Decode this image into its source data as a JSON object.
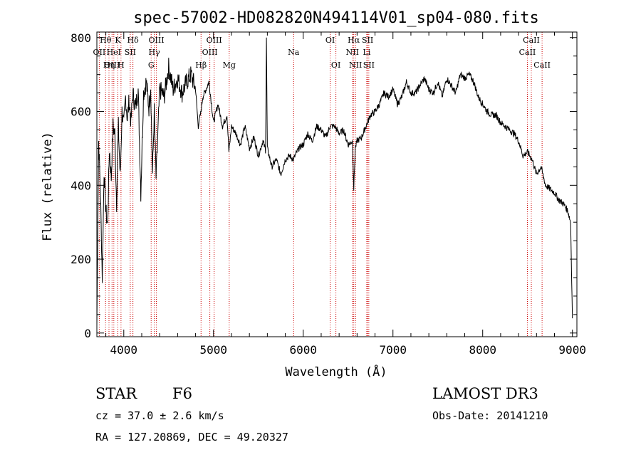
{
  "chart_data": {
    "type": "line",
    "title": "spec-57002-HD082820N494114V01_sp04-080.fits",
    "xlabel": "Wavelength (Å)",
    "ylabel": "Flux (relative)",
    "xlim": [
      3700,
      9050
    ],
    "ylim": [
      -10,
      815
    ],
    "xticks": [
      4000,
      5000,
      6000,
      7000,
      8000,
      9000
    ],
    "yticks": [
      0,
      200,
      400,
      600,
      800
    ],
    "series": [
      {
        "name": "flux",
        "x": [
          3700,
          3720,
          3740,
          3760,
          3780,
          3800,
          3820,
          3840,
          3860,
          3880,
          3900,
          3920,
          3940,
          3960,
          3980,
          4000,
          4020,
          4040,
          4060,
          4080,
          4100,
          4130,
          4160,
          4190,
          4220,
          4250,
          4280,
          4300,
          4320,
          4340,
          4360,
          4400,
          4450,
          4500,
          4550,
          4600,
          4650,
          4700,
          4750,
          4800,
          4830,
          4861,
          4880,
          4900,
          4950,
          5000,
          5050,
          5100,
          5150,
          5172,
          5200,
          5250,
          5300,
          5350,
          5400,
          5450,
          5500,
          5550,
          5580,
          5590,
          5600,
          5650,
          5700,
          5750,
          5800,
          5850,
          5890,
          5950,
          6000,
          6050,
          6100,
          6150,
          6200,
          6250,
          6300,
          6350,
          6400,
          6450,
          6500,
          6550,
          6563,
          6580,
          6600,
          6650,
          6700,
          6750,
          6800,
          6850,
          6900,
          6950,
          7000,
          7050,
          7100,
          7150,
          7200,
          7250,
          7300,
          7350,
          7400,
          7450,
          7500,
          7550,
          7600,
          7650,
          7700,
          7750,
          7800,
          7850,
          7900,
          7950,
          8000,
          8050,
          8100,
          8150,
          8200,
          8250,
          8300,
          8350,
          8400,
          8450,
          8500,
          8550,
          8600,
          8650,
          8700,
          8750,
          8800,
          8850,
          8900,
          8950,
          8980,
          9000
        ],
        "y": [
          20,
          520,
          380,
          150,
          440,
          330,
          290,
          500,
          420,
          560,
          540,
          350,
          560,
          420,
          600,
          560,
          640,
          580,
          630,
          570,
          650,
          610,
          660,
          380,
          650,
          680,
          610,
          670,
          430,
          600,
          420,
          660,
          640,
          720,
          660,
          690,
          650,
          680,
          700,
          660,
          560,
          600,
          640,
          650,
          680,
          570,
          620,
          560,
          590,
          490,
          560,
          540,
          510,
          560,
          500,
          530,
          480,
          520,
          495,
          800,
          500,
          450,
          470,
          430,
          470,
          480,
          470,
          500,
          510,
          540,
          520,
          560,
          550,
          530,
          560,
          560,
          540,
          550,
          510,
          520,
          390,
          500,
          520,
          530,
          560,
          590,
          600,
          620,
          650,
          640,
          660,
          620,
          640,
          680,
          650,
          650,
          670,
          690,
          660,
          650,
          680,
          640,
          690,
          670,
          650,
          700,
          690,
          700,
          680,
          640,
          620,
          600,
          590,
          590,
          570,
          560,
          550,
          540,
          520,
          480,
          490,
          470,
          430,
          450,
          400,
          390,
          380,
          360,
          350,
          330,
          300,
          40
        ]
      }
    ],
    "spectral_lines": [
      {
        "label": "Hθ",
        "wavelength": 3797,
        "row": 0
      },
      {
        "label": "OII",
        "wavelength": 3727,
        "row": 1
      },
      {
        "label": "OIII",
        "wavelength": 3869,
        "row": 2
      },
      {
        "label": "K",
        "wavelength": 3934,
        "row": 0
      },
      {
        "label": "HeI",
        "wavelength": 3889,
        "row": 1
      },
      {
        "label": "Hη",
        "wavelength": 3835,
        "row": 2
      },
      {
        "label": "SII",
        "wavelength": 4072,
        "row": 1
      },
      {
        "label": "H",
        "wavelength": 3969,
        "row": 2
      },
      {
        "label": "Hδ",
        "wavelength": 4102,
        "row": 0
      },
      {
        "label": "OIII",
        "wavelength": 4363,
        "row": 0
      },
      {
        "label": "Hγ",
        "wavelength": 4340,
        "row": 1
      },
      {
        "label": "G",
        "wavelength": 4305,
        "row": 2
      },
      {
        "label": "OIII",
        "wavelength": 5007,
        "row": 0
      },
      {
        "label": "OIII",
        "wavelength": 4959,
        "row": 1
      },
      {
        "label": "Hβ",
        "wavelength": 4861,
        "row": 2
      },
      {
        "label": "Mg",
        "wavelength": 5175,
        "row": 2
      },
      {
        "label": "Na",
        "wavelength": 5893,
        "row": 1
      },
      {
        "label": "OI",
        "wavelength": 6300,
        "row": 0
      },
      {
        "label": "OI",
        "wavelength": 6364,
        "row": 2
      },
      {
        "label": "Hα",
        "wavelength": 6563,
        "row": 0
      },
      {
        "label": "SII",
        "wavelength": 6717,
        "row": 0
      },
      {
        "label": "NII",
        "wavelength": 6548,
        "row": 1
      },
      {
        "label": "Li",
        "wavelength": 6708,
        "row": 1
      },
      {
        "label": "NII",
        "wavelength": 6583,
        "row": 2
      },
      {
        "label": "SII",
        "wavelength": 6731,
        "row": 2
      },
      {
        "label": "CaII",
        "wavelength": 8542,
        "row": 0
      },
      {
        "label": "CaII",
        "wavelength": 8498,
        "row": 1
      },
      {
        "label": "CaII",
        "wavelength": 8662,
        "row": 2
      }
    ]
  },
  "info": {
    "object_class": "STAR",
    "subclass": "F6",
    "survey": "LAMOST DR3",
    "redshift": "cz = 37.0 ± 2.6 km/s",
    "obs_date": "Obs-Date: 20141210",
    "coords": "RA = 127.20869, DEC =  49.20327"
  },
  "colors": {
    "axis": "#000000",
    "spectrum": "#000000",
    "line_marker": "#cc0000"
  }
}
